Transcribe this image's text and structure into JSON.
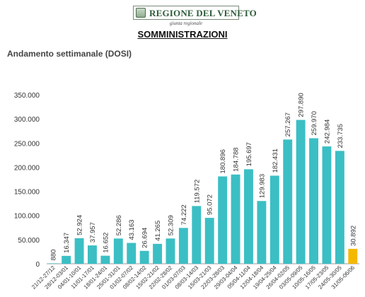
{
  "header": {
    "logo_name": "REGIONE DEL VENETO",
    "logo_sub": "giunta regionale",
    "title": "SOMMINISTRAZIONI",
    "subtitle": "Andamento settimanale (DOSI)"
  },
  "chart_data": {
    "type": "bar",
    "title": "Andamento settimanale (DOSI)",
    "xlabel": "",
    "ylabel": "",
    "ylim": [
      0,
      350000
    ],
    "yticks": [
      0,
      50000,
      100000,
      150000,
      200000,
      250000,
      300000,
      350000
    ],
    "ytick_labels": [
      "0",
      "50.000",
      "100.000",
      "150.000",
      "200.000",
      "250.000",
      "300.000",
      "350.000"
    ],
    "grid": false,
    "legend": "none",
    "colors": {
      "bar": "#3bbfc4",
      "highlight": "#f5b800",
      "text": "#333333",
      "axis": "#9a9a9a"
    },
    "categories": [
      "21/12-27/12",
      "28/12-03/01",
      "04/01-10/01",
      "11/01-17/01",
      "18/01-24/01",
      "25/01-31/01",
      "01/02-07/02",
      "08/02-14/02",
      "15/02-21/02",
      "22/02-28/02",
      "01/03-07/03",
      "08/03-14/03",
      "15/03-21/03",
      "22/03-28/03",
      "29/03-04/04",
      "05/04-11/04",
      "12/04-18/04",
      "19/04-25/04",
      "26/04-02/05",
      "03/05-09/05",
      "10/05-16/05",
      "17/05-23/05",
      "24/05-30/05",
      "31/05-06/06"
    ],
    "values": [
      880,
      16347,
      52924,
      37957,
      16652,
      52286,
      43163,
      26694,
      41265,
      52309,
      74222,
      119572,
      95072,
      180896,
      184788,
      195697,
      129983,
      182431,
      257267,
      297890,
      259970,
      242984,
      233735,
      30892
    ],
    "value_labels": [
      "880",
      "16.347",
      "52.924",
      "37.957",
      "16.652",
      "52.286",
      "43.163",
      "26.694",
      "41.265",
      "52.309",
      "74.222",
      "119.572",
      "95.072",
      "180.896",
      "184.788",
      "195.697",
      "129.983",
      "182.431",
      "257.267",
      "297.890",
      "259.970",
      "242.984",
      "233.735",
      "30.892"
    ],
    "highlight_index": 23
  }
}
